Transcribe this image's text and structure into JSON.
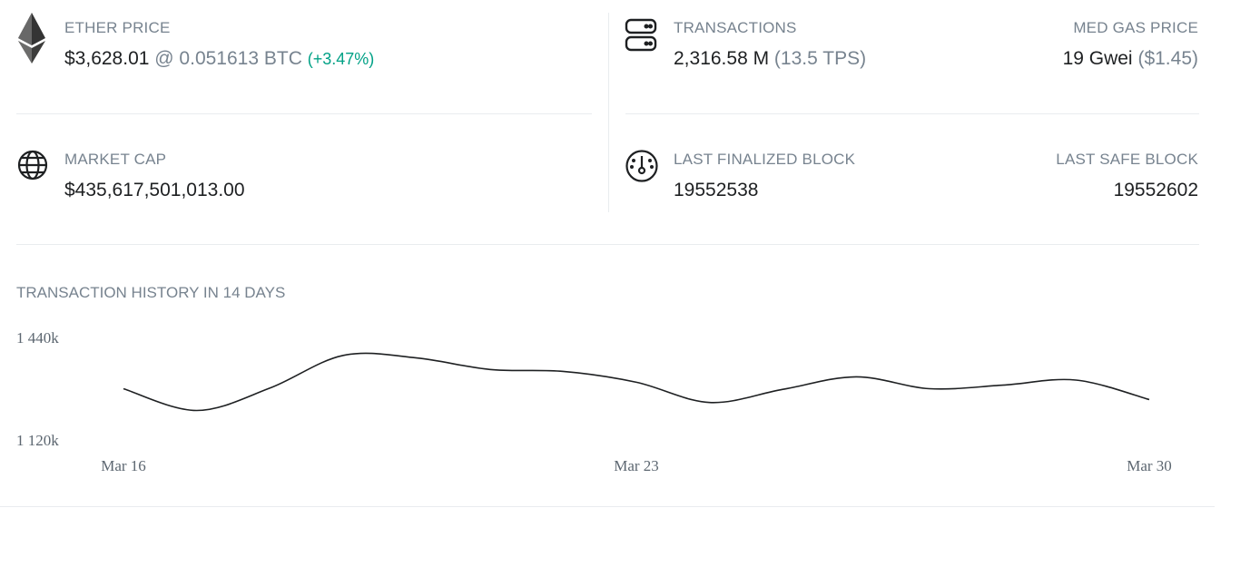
{
  "stats": {
    "ether_price": {
      "label": "ETHER PRICE",
      "usd": "$3,628.01",
      "btc": "@ 0.051613 BTC",
      "change": "(+3.47%)"
    },
    "transactions": {
      "label": "TRANSACTIONS",
      "count": "2,316.58 M",
      "tps": "(13.5 TPS)"
    },
    "med_gas_price": {
      "label": "MED GAS PRICE",
      "gwei": "19 Gwei",
      "usd": "($1.45)"
    },
    "market_cap": {
      "label": "MARKET CAP",
      "value": "$435,617,501,013.00"
    },
    "last_finalized_block": {
      "label": "LAST FINALIZED BLOCK",
      "value": "19552538"
    },
    "last_safe_block": {
      "label": "LAST SAFE BLOCK",
      "value": "19552602"
    }
  },
  "icons": {
    "ether": "ethereum-icon",
    "transactions": "server-icon",
    "market_cap": "globe-icon",
    "finalized": "gauge-icon"
  },
  "colors": {
    "accent_green": "#00a186",
    "muted": "#77838f",
    "line": "#1e2022"
  },
  "chart_data": {
    "type": "line",
    "title": "TRANSACTION HISTORY IN 14 DAYS",
    "ytick_labels": [
      "1 440k",
      "1 120k"
    ],
    "y_ticks": [
      1440000,
      1120000
    ],
    "ylim": [
      1120000,
      1440000
    ],
    "x_tick_labels": [
      "Mar 16",
      "Mar 23",
      "Mar 30"
    ],
    "x_tick_index": [
      0,
      7,
      14
    ],
    "x": [
      "Mar 16",
      "Mar 17",
      "Mar 18",
      "Mar 19",
      "Mar 20",
      "Mar 21",
      "Mar 22",
      "Mar 23",
      "Mar 24",
      "Mar 25",
      "Mar 26",
      "Mar 27",
      "Mar 28",
      "Mar 29",
      "Mar 30"
    ],
    "values": [
      1280000,
      1212000,
      1282000,
      1384000,
      1376000,
      1340000,
      1334000,
      1300000,
      1237000,
      1278000,
      1317000,
      1280000,
      1291000,
      1307000,
      1246000
    ],
    "grid": false
  }
}
